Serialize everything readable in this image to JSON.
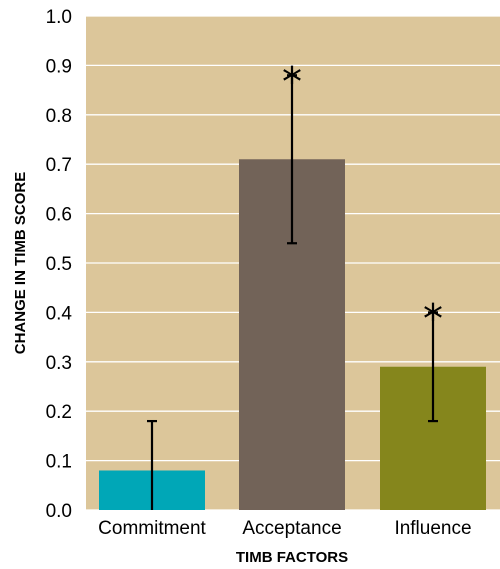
{
  "chart_data": {
    "type": "bar",
    "categories": [
      "Commitment",
      "Acceptance",
      "Influence"
    ],
    "values": [
      0.08,
      0.71,
      0.29
    ],
    "error_upper": [
      0.18,
      0.88,
      0.4
    ],
    "error_lower": [
      0.0,
      0.54,
      0.18
    ],
    "significance_marker": [
      "",
      "*",
      "*"
    ],
    "bar_colors": [
      "#00A7B7",
      "#726358",
      "#85861C"
    ],
    "background_color": "#DCC69A",
    "grid": true,
    "grid_color": "#FFFFFF",
    "xlabel": "TIMB FACTORS",
    "ylabel": "CHANGE IN TIMB SCORE",
    "ylim": [
      0,
      1.0
    ],
    "yticks": [
      "0.0",
      "0.1",
      "0.2",
      "0.3",
      "0.4",
      "0.5",
      "0.6",
      "0.7",
      "0.8",
      "0.9",
      "1.0"
    ],
    "title": ""
  }
}
